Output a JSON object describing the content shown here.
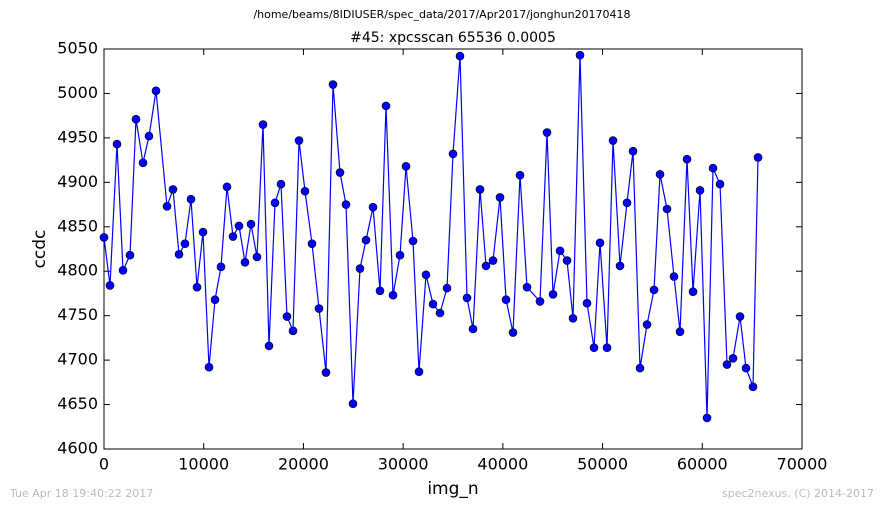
{
  "chart_data": {
    "type": "line",
    "title": "/home/beams/8IDIUSER/spec_data/2017/Apr2017/jonghun20170418",
    "subtitle": "#45: xpcsscan 65536 0.0005",
    "xlabel": "img_n",
    "ylabel": "ccdc",
    "annotations": [
      "Tue Apr 18 19:40:22 2017",
      "spec2nexus, (C) 2014-2017"
    ],
    "color": "#0000ff",
    "x": [
      0,
      602,
      1304,
      1905,
      2608,
      3209,
      3911,
      4513,
      5215,
      6318,
      6920,
      7522,
      8123,
      8725,
      9327,
      9929,
      10530,
      11132,
      11734,
      12336,
      12937,
      13539,
      14141,
      14743,
      15344,
      15946,
      16548,
      17150,
      17751,
      18353,
      18955,
      19557,
      20158,
      20860,
      21562,
      22264,
      22966,
      23668,
      24270,
      24972,
      25674,
      26276,
      26978,
      27680,
      28282,
      28984,
      29686,
      30288,
      30990,
      31591,
      32293,
      32995,
      33697,
      34399,
      35000,
      35702,
      36405,
      37007,
      37709,
      38311,
      39013,
      39715,
      40317,
      41019,
      41721,
      42423,
      43726,
      44428,
      45030,
      45732,
      46434,
      47036,
      47738,
      48440,
      49142,
      49744,
      50446,
      51048,
      51750,
      52452,
      53053,
      53755,
      54457,
      55160,
      55761,
      56463,
      57165,
      57767,
      58469,
      59071,
      59773,
      60475,
      61077,
      61779,
      62481,
      63083,
      63785,
      64386,
      65088,
      65590
    ],
    "values": [
      4838,
      4784,
      4943,
      4801,
      4818,
      4971,
      4922,
      4952,
      5003,
      4873,
      4892,
      4819,
      4831,
      4881,
      4782,
      4844,
      4692,
      4768,
      4805,
      4895,
      4839,
      4851,
      4810,
      4853,
      4816,
      4965,
      4716,
      4877,
      4898,
      4749,
      4733,
      4947,
      4890,
      4831,
      4758,
      4686,
      5010,
      4911,
      4875,
      4651,
      4803,
      4835,
      4872,
      4778,
      4986,
      4773,
      4818,
      4918,
      4834,
      4687,
      4796,
      4763,
      4753,
      4781,
      4932,
      5042,
      4770,
      4735,
      4892,
      4806,
      4812,
      4883,
      4768,
      4731,
      4908,
      4782,
      4766,
      4956,
      4774,
      4823,
      4812,
      4747,
      5043,
      4764,
      4714,
      4832,
      4714,
      4947,
      4806,
      4877,
      4935,
      4691,
      4740,
      4779,
      4909,
      4870,
      4794,
      4732,
      4926,
      4777,
      4891,
      4635,
      4916,
      4898,
      4695,
      4702,
      4749,
      4691,
      4670,
      4928
    ],
    "xlim": [
      0,
      70000
    ],
    "xticks": [
      0,
      10000,
      20000,
      30000,
      40000,
      50000,
      60000,
      70000
    ],
    "ylim": [
      4600,
      5050
    ],
    "yticks": [
      4600,
      4650,
      4700,
      4750,
      4800,
      4850,
      4900,
      4950,
      5000,
      5050
    ]
  }
}
